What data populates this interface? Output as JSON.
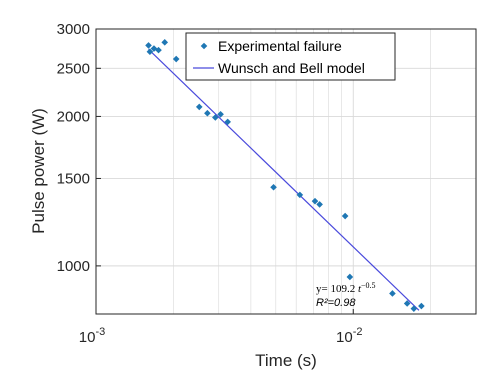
{
  "chart_data": {
    "type": "scatter",
    "xlabel": "Time (s)",
    "ylabel": "Pulse power (W)",
    "x_scale": "log",
    "y_scale": "log",
    "xlim": [
      0.001,
      0.03
    ],
    "ylim": [
      800,
      3000
    ],
    "y_ticks": [
      1000,
      1500,
      2000,
      2500,
      3000
    ],
    "y_tick_labels": [
      "1000",
      "1500",
      "2000",
      "2500",
      "3000"
    ],
    "x_ticks": [
      0.001,
      0.01
    ],
    "x_tick_labels": [
      {
        "base": "10",
        "exp": "-3"
      },
      {
        "base": "10",
        "exp": "-2"
      }
    ],
    "grid": true,
    "legend_position": "top-right",
    "colors": {
      "series": "#1f77b4",
      "model": "#4a4adc",
      "grid": "#d9d9d9",
      "axis": "#262626"
    },
    "series": [
      {
        "name": "Experimental failure",
        "kind": "scatter",
        "x": [
          0.0016,
          0.00162,
          0.00168,
          0.00175,
          0.00185,
          0.00205,
          0.00252,
          0.00271,
          0.00291,
          0.00305,
          0.00325,
          0.0049,
          0.0062,
          0.0071,
          0.0074,
          0.0093,
          0.0097,
          0.0142,
          0.0162,
          0.0172,
          0.0184
        ],
        "y": [
          2780,
          2700,
          2740,
          2720,
          2820,
          2610,
          2090,
          2030,
          1990,
          2020,
          1950,
          1440,
          1390,
          1350,
          1330,
          1260,
          950,
          880,
          840,
          820,
          830
        ]
      },
      {
        "name": "Wunsch and Bell model",
        "kind": "line",
        "x": [
          0.0016,
          0.018
        ],
        "y": [
          2730,
          814
        ]
      }
    ],
    "annotation": {
      "equation_prefix": "y= 109.2 ",
      "equation_var": "t",
      "equation_exp": "−0.5",
      "r2": "R²=0.98"
    }
  }
}
